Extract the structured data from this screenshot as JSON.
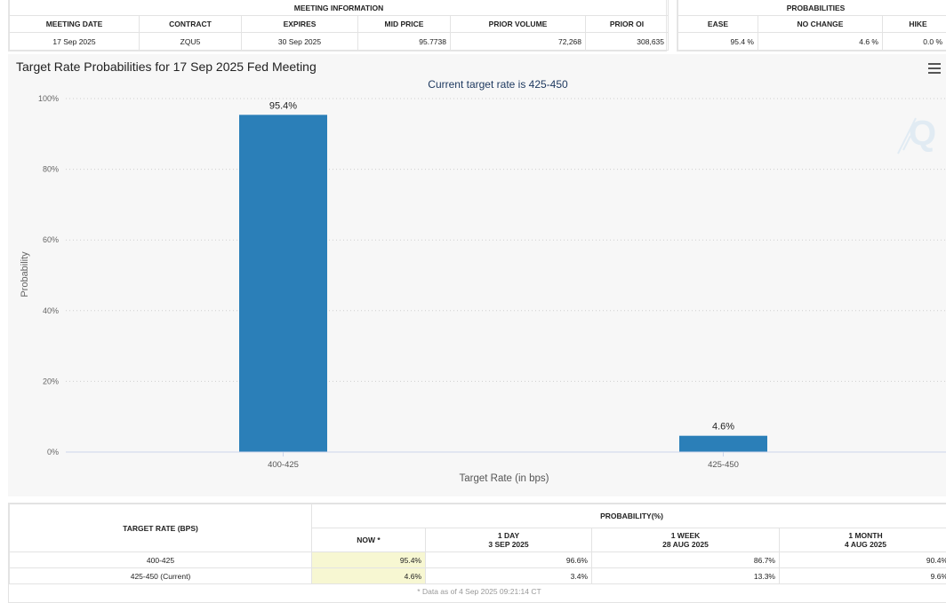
{
  "meeting_info": {
    "group_title": "MEETING INFORMATION",
    "headers": [
      "MEETING DATE",
      "CONTRACT",
      "EXPIRES",
      "MID PRICE",
      "PRIOR VOLUME",
      "PRIOR OI"
    ],
    "row": [
      "17 Sep 2025",
      "ZQU5",
      "30 Sep 2025",
      "95.7738",
      "72,268",
      "308,635"
    ]
  },
  "probabilities": {
    "group_title": "PROBABILITIES",
    "headers": [
      "EASE",
      "NO CHANGE",
      "HIKE"
    ],
    "row": [
      "95.4 %",
      "4.6 %",
      "0.0 %"
    ]
  },
  "chart": {
    "menu_icon": "hamburger-menu-icon",
    "watermark_icon": "q-logo-watermark"
  },
  "chart_data": {
    "type": "bar",
    "title": "Target Rate Probabilities for 17 Sep 2025 Fed Meeting",
    "subtitle": "Current target rate is 425-450",
    "xlabel": "Target Rate (in bps)",
    "ylabel": "Probability",
    "categories": [
      "400-425",
      "425-450"
    ],
    "values": [
      95.4,
      4.6
    ],
    "data_labels": [
      "95.4%",
      "4.6%"
    ],
    "ylim": [
      0,
      100
    ],
    "yticks": [
      0,
      20,
      40,
      60,
      80,
      100
    ],
    "ytick_labels": [
      "0%",
      "20%",
      "40%",
      "60%",
      "80%",
      "100%"
    ],
    "grid": true,
    "bar_color": "#2b7fb8"
  },
  "prob_table": {
    "target_header": "TARGET RATE (BPS)",
    "group_header": "PROBABILITY(%)",
    "columns": [
      {
        "line1": "NOW *",
        "line2": ""
      },
      {
        "line1": "1 DAY",
        "line2": "3 SEP 2025"
      },
      {
        "line1": "1 WEEK",
        "line2": "28 AUG 2025"
      },
      {
        "line1": "1 MONTH",
        "line2": "4 AUG 2025"
      }
    ],
    "rows": [
      {
        "rate": "400-425",
        "values": [
          "95.4%",
          "96.6%",
          "86.7%",
          "90.4%"
        ]
      },
      {
        "rate": "425-450 (Current)",
        "values": [
          "4.6%",
          "3.4%",
          "13.3%",
          "9.6%"
        ]
      }
    ],
    "footnote": "* Data as of 4 Sep 2025 09:21:14 CT"
  }
}
